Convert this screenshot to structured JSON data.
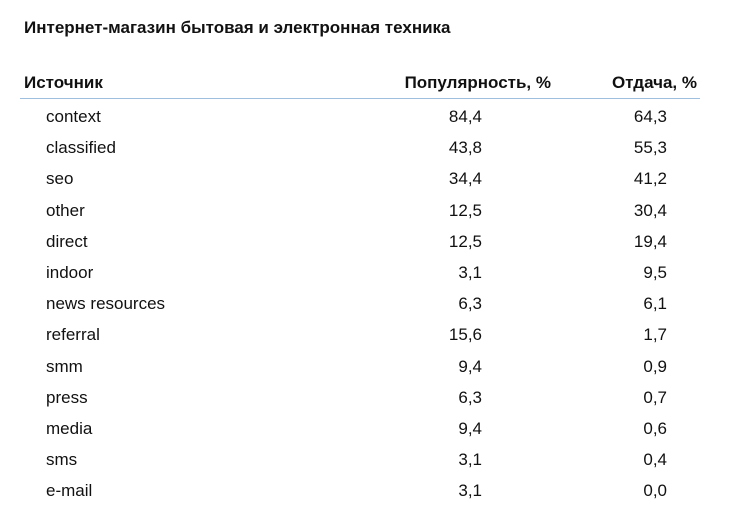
{
  "header": {
    "title": "Интернет-магазин бытовая и электронная техника"
  },
  "table": {
    "columns": [
      "Источник",
      "Популярность, %",
      "Отдача, %"
    ],
    "rows": [
      [
        "context",
        "84,4",
        "64,3"
      ],
      [
        "classified",
        "43,8",
        "55,3"
      ],
      [
        "seo",
        "34,4",
        "41,2"
      ],
      [
        "other",
        "12,5",
        "30,4"
      ],
      [
        "direct",
        "12,5",
        "19,4"
      ],
      [
        "indoor",
        "3,1",
        "9,5"
      ],
      [
        "news resources",
        "6,3",
        "6,1"
      ],
      [
        "referral",
        "15,6",
        "1,7"
      ],
      [
        "smm",
        "9,4",
        "0,9"
      ],
      [
        "press",
        "6,3",
        "0,7"
      ],
      [
        "media",
        "9,4",
        "0,6"
      ],
      [
        "sms",
        "3,1",
        "0,4"
      ],
      [
        "e-mail",
        "3,1",
        "0,0"
      ]
    ]
  }
}
